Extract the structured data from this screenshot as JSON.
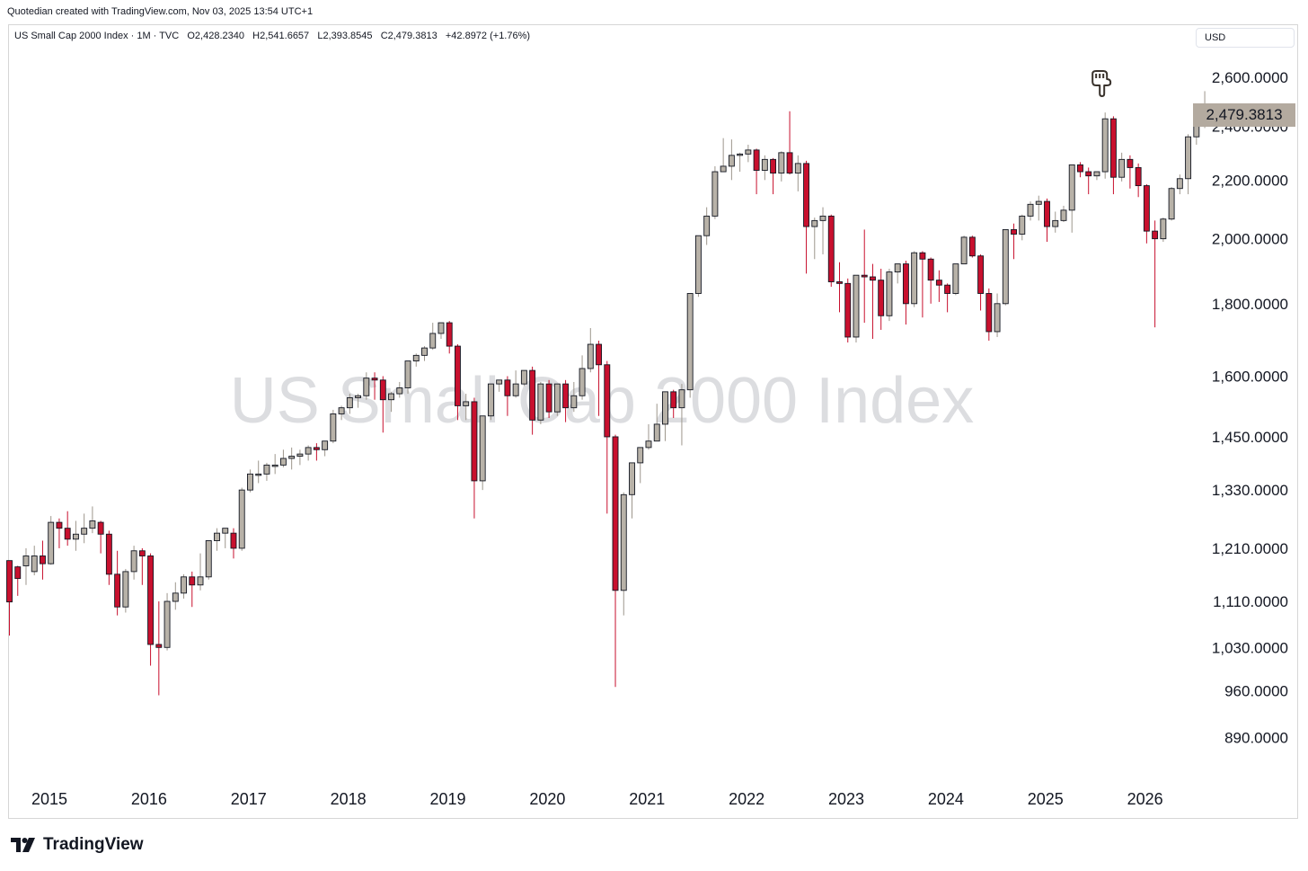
{
  "header": {
    "text": "Quotedian created with TradingView.com, Nov 03, 2025 13:54 UTC+1"
  },
  "legend": {
    "title": "US Small Cap 2000 Index · 1M · TVC",
    "open": "O2,428.2340",
    "high": "H2,541.6657",
    "low": "L2,393.8545",
    "close": "C2,479.3813",
    "change": "+42.8972 (+1.76%)"
  },
  "currency": "USD",
  "watermark": "US Small Cap 2000 Index",
  "last_price_label": "2,479.3813",
  "footer": {
    "brand": "TradingView"
  },
  "colors": {
    "up_body": "#b8b2a8",
    "down_body": "#c8102e",
    "outline": "#131722",
    "price_tag": "#b3aa9f",
    "down_wick": "#c8102e",
    "up_wick": "#9d968c"
  },
  "icons": {
    "annotation": "pointing-hand-icon",
    "logo": "tradingview-logo-icon"
  },
  "chart_data": {
    "type": "candlestick",
    "interval": "1M",
    "yscale": "log",
    "ylim": [
      840,
      2700
    ],
    "ytick_labels": [
      "2,600.0000",
      "2,400.0000",
      "2,200.0000",
      "2,000.0000",
      "1,800.0000",
      "1,600.0000",
      "1,450.0000",
      "1,330.0000",
      "1,210.0000",
      "1,110.0000",
      "1,030.0000",
      "960.0000",
      "890.0000"
    ],
    "ytick_values": [
      2600,
      2400,
      2200,
      2000,
      1800,
      1600,
      1450,
      1330,
      1210,
      1110,
      1030,
      960,
      890
    ],
    "xtick_labels": [
      "2015",
      "2016",
      "2017",
      "2018",
      "2019",
      "2020",
      "2021",
      "2022",
      "2023",
      "2024",
      "2025",
      "2026"
    ],
    "first_month": "2014-11",
    "annotation_month": "2025-11",
    "candles": [
      [
        1186,
        1174,
        1109,
        1050
      ],
      [
        1174,
        1176,
        1152,
        1120
      ],
      [
        1176,
        1210,
        1195,
        1140
      ],
      [
        1165,
        1215,
        1195,
        1158
      ],
      [
        1195,
        1225,
        1180,
        1150
      ],
      [
        1180,
        1275,
        1262,
        1178
      ],
      [
        1262,
        1270,
        1250,
        1210
      ],
      [
        1250,
        1285,
        1228,
        1215
      ],
      [
        1228,
        1265,
        1238,
        1205
      ],
      [
        1238,
        1280,
        1250,
        1220
      ],
      [
        1250,
        1295,
        1265,
        1240
      ],
      [
        1262,
        1265,
        1238,
        1200
      ],
      [
        1238,
        1245,
        1160,
        1140
      ],
      [
        1160,
        1205,
        1100,
        1085
      ],
      [
        1100,
        1170,
        1165,
        1090
      ],
      [
        1165,
        1215,
        1205,
        1150
      ],
      [
        1205,
        1210,
        1195,
        1140
      ],
      [
        1195,
        1200,
        1035,
        1000
      ],
      [
        1035,
        1110,
        1030,
        953
      ],
      [
        1030,
        1125,
        1110,
        1025
      ],
      [
        1110,
        1145,
        1125,
        1095
      ],
      [
        1125,
        1160,
        1155,
        1115
      ],
      [
        1155,
        1165,
        1140,
        1100
      ],
      [
        1140,
        1200,
        1155,
        1130
      ],
      [
        1155,
        1225,
        1225,
        1150
      ],
      [
        1225,
        1250,
        1240,
        1205
      ],
      [
        1240,
        1245,
        1250,
        1210
      ],
      [
        1240,
        1250,
        1210,
        1190
      ],
      [
        1210,
        1335,
        1330,
        1205
      ],
      [
        1330,
        1375,
        1365,
        1325
      ],
      [
        1365,
        1395,
        1365,
        1345
      ],
      [
        1365,
        1390,
        1385,
        1350
      ],
      [
        1385,
        1410,
        1385,
        1365
      ],
      [
        1385,
        1420,
        1400,
        1380
      ],
      [
        1400,
        1425,
        1405,
        1375
      ],
      [
        1405,
        1420,
        1410,
        1385
      ],
      [
        1410,
        1430,
        1425,
        1395
      ],
      [
        1425,
        1435,
        1420,
        1395
      ],
      [
        1420,
        1440,
        1440,
        1405
      ],
      [
        1440,
        1515,
        1505,
        1435
      ],
      [
        1505,
        1525,
        1520,
        1490
      ],
      [
        1520,
        1555,
        1545,
        1505
      ],
      [
        1545,
        1555,
        1550,
        1520
      ],
      [
        1550,
        1610,
        1595,
        1540
      ],
      [
        1595,
        1610,
        1590,
        1540
      ],
      [
        1590,
        1600,
        1540,
        1460
      ],
      [
        1540,
        1560,
        1555,
        1510
      ],
      [
        1555,
        1585,
        1570,
        1545
      ],
      [
        1570,
        1640,
        1640,
        1555
      ],
      [
        1640,
        1660,
        1655,
        1625
      ],
      [
        1655,
        1680,
        1675,
        1640
      ],
      [
        1675,
        1745,
        1715,
        1670
      ],
      [
        1715,
        1745,
        1745,
        1700
      ],
      [
        1745,
        1750,
        1680,
        1660
      ],
      [
        1680,
        1685,
        1525,
        1490
      ],
      [
        1525,
        1555,
        1535,
        1490
      ],
      [
        1535,
        1545,
        1350,
        1270
      ],
      [
        1350,
        1500,
        1500,
        1330
      ],
      [
        1500,
        1580,
        1580,
        1490
      ],
      [
        1580,
        1590,
        1590,
        1560
      ],
      [
        1590,
        1600,
        1550,
        1500
      ],
      [
        1550,
        1615,
        1580,
        1545
      ],
      [
        1580,
        1615,
        1615,
        1575
      ],
      [
        1615,
        1625,
        1490,
        1455
      ],
      [
        1490,
        1585,
        1580,
        1480
      ],
      [
        1580,
        1590,
        1510,
        1495
      ],
      [
        1510,
        1580,
        1580,
        1500
      ],
      [
        1580,
        1590,
        1520,
        1485
      ],
      [
        1520,
        1585,
        1550,
        1510
      ],
      [
        1550,
        1655,
        1620,
        1540
      ],
      [
        1620,
        1730,
        1685,
        1610
      ],
      [
        1685,
        1695,
        1630,
        1500
      ],
      [
        1630,
        1640,
        1450,
        1280
      ],
      [
        1450,
        1455,
        1130,
        966
      ],
      [
        1130,
        1325,
        1320,
        1085
      ],
      [
        1320,
        1390,
        1390,
        1270
      ],
      [
        1390,
        1420,
        1425,
        1345
      ],
      [
        1425,
        1480,
        1440,
        1420
      ],
      [
        1440,
        1530,
        1480,
        1470
      ],
      [
        1480,
        1560,
        1560,
        1440
      ],
      [
        1560,
        1565,
        1520,
        1495
      ],
      [
        1520,
        1580,
        1565,
        1430
      ],
      [
        1565,
        1830,
        1830,
        1545
      ],
      [
        1830,
        2010,
        2010,
        1820
      ],
      [
        2010,
        2105,
        2075,
        1980
      ],
      [
        2075,
        2250,
        2230,
        2065
      ],
      [
        2230,
        2355,
        2250,
        2230
      ],
      [
        2250,
        2350,
        2290,
        2200
      ],
      [
        2290,
        2300,
        2295,
        2230
      ],
      [
        2295,
        2330,
        2310,
        2265
      ],
      [
        2310,
        2315,
        2235,
        2150
      ],
      [
        2235,
        2290,
        2275,
        2200
      ],
      [
        2275,
        2280,
        2225,
        2150
      ],
      [
        2225,
        2305,
        2300,
        2195
      ],
      [
        2300,
        2460,
        2225,
        2220
      ],
      [
        2225,
        2290,
        2260,
        2160
      ],
      [
        2260,
        2270,
        2040,
        1890
      ],
      [
        2040,
        2070,
        2060,
        1935
      ],
      [
        2060,
        2105,
        2075,
        1950
      ],
      [
        2075,
        2080,
        1865,
        1850
      ],
      [
        1865,
        1925,
        1860,
        1775
      ],
      [
        1860,
        1875,
        1705,
        1690
      ],
      [
        1705,
        1880,
        1885,
        1690
      ],
      [
        1885,
        2030,
        1880,
        1745
      ],
      [
        1880,
        1920,
        1870,
        1700
      ],
      [
        1870,
        1905,
        1765,
        1725
      ],
      [
        1765,
        1905,
        1895,
        1750
      ],
      [
        1895,
        1920,
        1920,
        1860
      ],
      [
        1920,
        1930,
        1800,
        1740
      ],
      [
        1800,
        1960,
        1955,
        1790
      ],
      [
        1955,
        1960,
        1935,
        1760
      ],
      [
        1935,
        1940,
        1870,
        1800
      ],
      [
        1870,
        1900,
        1855,
        1805
      ],
      [
        1855,
        1860,
        1830,
        1775
      ],
      [
        1830,
        1920,
        1920,
        1825
      ],
      [
        1920,
        2010,
        2005,
        1920
      ],
      [
        2005,
        2010,
        1945,
        1940
      ],
      [
        1945,
        1950,
        1830,
        1780
      ],
      [
        1830,
        1845,
        1720,
        1695
      ],
      [
        1720,
        1830,
        1800,
        1705
      ],
      [
        1800,
        2010,
        2030,
        1795
      ],
      [
        2030,
        2050,
        2015,
        1935
      ],
      [
        2015,
        2080,
        2075,
        1995
      ],
      [
        2075,
        2125,
        2115,
        2060
      ],
      [
        2115,
        2145,
        2125,
        2060
      ],
      [
        2125,
        2135,
        2040,
        1990
      ],
      [
        2040,
        2090,
        2060,
        2020
      ],
      [
        2060,
        2110,
        2095,
        2055
      ],
      [
        2095,
        2255,
        2255,
        2020
      ],
      [
        2255,
        2265,
        2230,
        2210
      ],
      [
        2230,
        2245,
        2215,
        2150
      ],
      [
        2215,
        2230,
        2230,
        2200
      ],
      [
        2230,
        2455,
        2430,
        2205
      ],
      [
        2430,
        2440,
        2210,
        2150
      ],
      [
        2210,
        2300,
        2275,
        2195
      ],
      [
        2275,
        2290,
        2245,
        2170
      ],
      [
        2245,
        2260,
        2180,
        2140
      ],
      [
        2180,
        2185,
        2025,
        1985
      ],
      [
        2025,
        2060,
        2000,
        1732
      ],
      [
        2000,
        2070,
        2065,
        1990
      ],
      [
        2065,
        2175,
        2170,
        2060
      ],
      [
        2170,
        2220,
        2205,
        2150
      ],
      [
        2205,
        2370,
        2360,
        2150
      ],
      [
        2360,
        2470,
        2428,
        2330
      ],
      [
        2428,
        2541.6657,
        2479.3813,
        2393.8545
      ]
    ]
  }
}
